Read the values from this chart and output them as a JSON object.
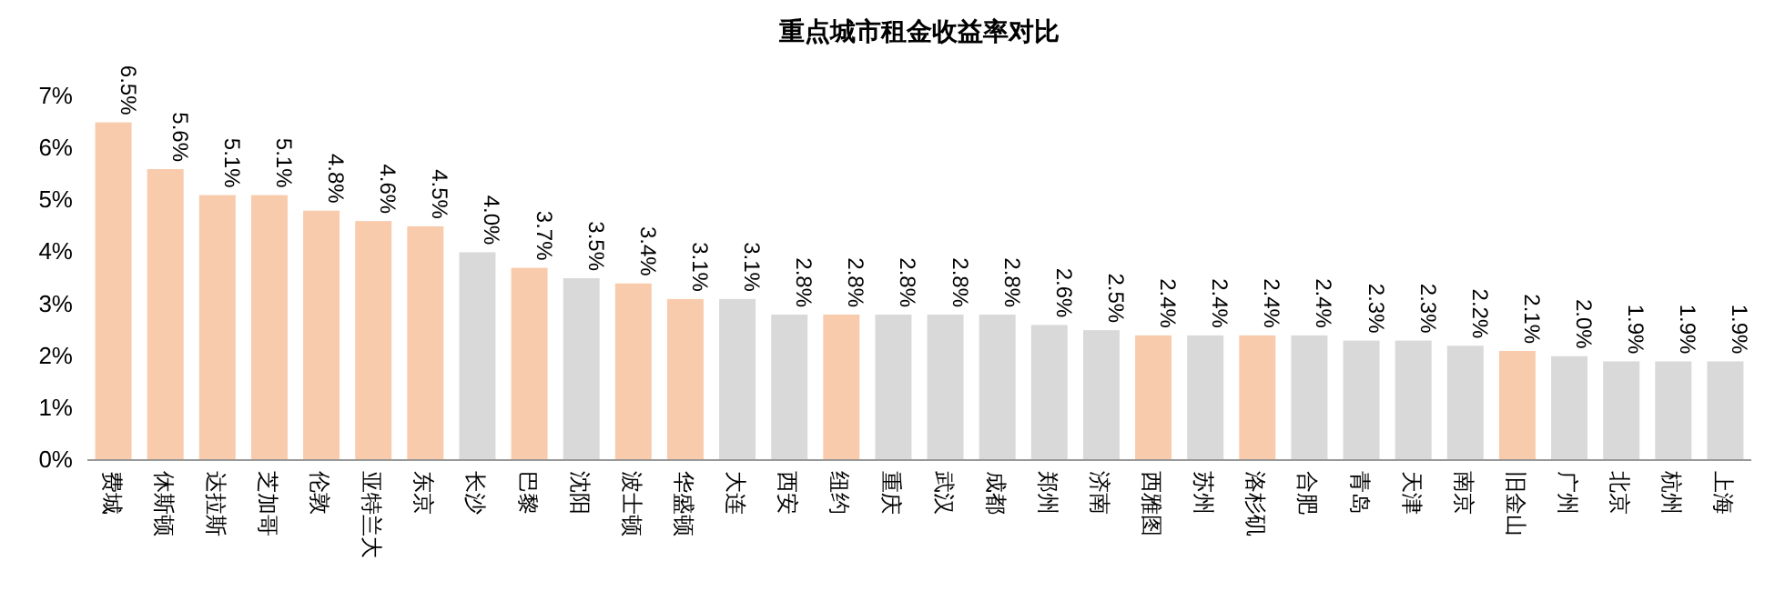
{
  "chart_data": {
    "type": "bar",
    "title": "重点城市租金收益率对比",
    "categories": [
      "费城",
      "休斯顿",
      "达拉斯",
      "芝加哥",
      "伦敦",
      "亚特兰大",
      "东京",
      "长沙",
      "巴黎",
      "沈阳",
      "波士顿",
      "华盛顿",
      "大连",
      "西安",
      "纽约",
      "重庆",
      "武汉",
      "成都",
      "郑州",
      "济南",
      "西雅图",
      "苏州",
      "洛杉矶",
      "合肥",
      "青岛",
      "天津",
      "南京",
      "旧金山",
      "广州",
      "北京",
      "杭州",
      "上海"
    ],
    "values": [
      6.5,
      5.6,
      5.1,
      5.1,
      4.8,
      4.6,
      4.5,
      4.0,
      3.7,
      3.5,
      3.4,
      3.1,
      3.1,
      2.8,
      2.8,
      2.8,
      2.8,
      2.8,
      2.6,
      2.5,
      2.4,
      2.4,
      2.4,
      2.4,
      2.3,
      2.3,
      2.2,
      2.1,
      2.0,
      1.9,
      1.9,
      1.9
    ],
    "value_labels": [
      "6.5%",
      "5.6%",
      "5.1%",
      "5.1%",
      "4.8%",
      "4.6%",
      "4.5%",
      "4.0%",
      "3.7%",
      "3.5%",
      "3.4%",
      "3.1%",
      "3.1%",
      "2.8%",
      "2.8%",
      "2.8%",
      "2.8%",
      "2.8%",
      "2.6%",
      "2.5%",
      "2.4%",
      "2.4%",
      "2.4%",
      "2.4%",
      "2.3%",
      "2.3%",
      "2.2%",
      "2.1%",
      "2.0%",
      "1.9%",
      "1.9%",
      "1.9%"
    ],
    "colors": [
      "#f8cbad",
      "#f8cbad",
      "#f8cbad",
      "#f8cbad",
      "#f8cbad",
      "#f8cbad",
      "#f8cbad",
      "#d9d9d9",
      "#f8cbad",
      "#d9d9d9",
      "#f8cbad",
      "#f8cbad",
      "#d9d9d9",
      "#d9d9d9",
      "#f8cbad",
      "#d9d9d9",
      "#d9d9d9",
      "#d9d9d9",
      "#d9d9d9",
      "#d9d9d9",
      "#f8cbad",
      "#d9d9d9",
      "#f8cbad",
      "#d9d9d9",
      "#d9d9d9",
      "#d9d9d9",
      "#d9d9d9",
      "#f8cbad",
      "#d9d9d9",
      "#d9d9d9",
      "#d9d9d9",
      "#d9d9d9"
    ],
    "ylim": [
      0,
      7
    ],
    "yticks": [
      {
        "value": 0,
        "label": "0%"
      },
      {
        "value": 1,
        "label": "1%"
      },
      {
        "value": 2,
        "label": "2%"
      },
      {
        "value": 3,
        "label": "3%"
      },
      {
        "value": 4,
        "label": "4%"
      },
      {
        "value": 5,
        "label": "5%"
      },
      {
        "value": 6,
        "label": "6%"
      },
      {
        "value": 7,
        "label": "7%"
      }
    ],
    "grid": false
  }
}
